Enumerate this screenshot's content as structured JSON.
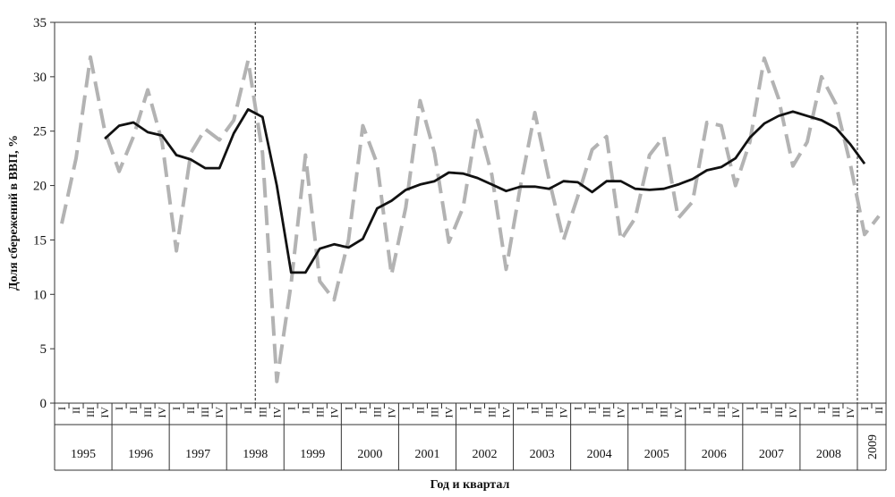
{
  "chart_data": {
    "type": "line",
    "title": "",
    "xlabel": "Год и квартал",
    "ylabel": "Доля сбережений в ВВП, %",
    "ylim": [
      0,
      35
    ],
    "yticks": [
      "0",
      "5",
      "10",
      "15",
      "20",
      "25",
      "30",
      "35"
    ],
    "grid": false,
    "legend": "none",
    "quarter_labels": [
      "I",
      "II",
      "III",
      "IV"
    ],
    "years": [
      {
        "label": "1995",
        "quarters": 4
      },
      {
        "label": "1996",
        "quarters": 4
      },
      {
        "label": "1997",
        "quarters": 4
      },
      {
        "label": "1998",
        "quarters": 4
      },
      {
        "label": "1999",
        "quarters": 4
      },
      {
        "label": "2000",
        "quarters": 4
      },
      {
        "label": "2001",
        "quarters": 4
      },
      {
        "label": "2002",
        "quarters": 4
      },
      {
        "label": "2003",
        "quarters": 4
      },
      {
        "label": "2004",
        "quarters": 4
      },
      {
        "label": "2005",
        "quarters": 4
      },
      {
        "label": "2006",
        "quarters": 4
      },
      {
        "label": "2007",
        "quarters": 4
      },
      {
        "label": "2008",
        "quarters": 4
      },
      {
        "label": "2009",
        "quarters": 2
      }
    ],
    "vlines_after_quarter_index": [
      13,
      55
    ],
    "series": [
      {
        "style": "dashed",
        "color": "#b3b3b3",
        "values": [
          16.5,
          22.5,
          31.8,
          25.0,
          21.3,
          24.5,
          28.8,
          24.0,
          14.0,
          23.0,
          25.2,
          24.2,
          26.0,
          31.5,
          23.0,
          2.0,
          11.0,
          22.8,
          11.2,
          9.5,
          15.0,
          25.5,
          22.0,
          11.8,
          18.0,
          27.8,
          23.0,
          14.8,
          18.0,
          26.0,
          21.0,
          12.3,
          20.0,
          26.7,
          20.5,
          15.0,
          19.0,
          23.3,
          24.5,
          15.0,
          17.0,
          22.8,
          24.5,
          17.0,
          18.5,
          25.8,
          25.5,
          20.0,
          24.0,
          31.7,
          28.0,
          21.8,
          24.0,
          30.0,
          27.5,
          22.0,
          15.5,
          17.2
        ]
      },
      {
        "style": "solid",
        "color": "#111111",
        "values": [
          null,
          null,
          null,
          24.3,
          25.5,
          25.8,
          24.9,
          24.6,
          22.8,
          22.4,
          21.6,
          21.6,
          24.8,
          27.0,
          26.3,
          20.0,
          12.0,
          12.0,
          14.2,
          14.6,
          14.3,
          15.1,
          17.9,
          18.6,
          19.6,
          20.1,
          20.4,
          21.2,
          21.1,
          20.7,
          20.1,
          19.5,
          19.9,
          19.9,
          19.7,
          20.4,
          20.3,
          19.4,
          20.4,
          20.4,
          19.7,
          19.6,
          19.7,
          20.1,
          20.6,
          21.4,
          21.7,
          22.5,
          24.4,
          25.7,
          26.4,
          26.8,
          26.4,
          26.0,
          25.3,
          23.8,
          22.0
        ]
      }
    ]
  }
}
